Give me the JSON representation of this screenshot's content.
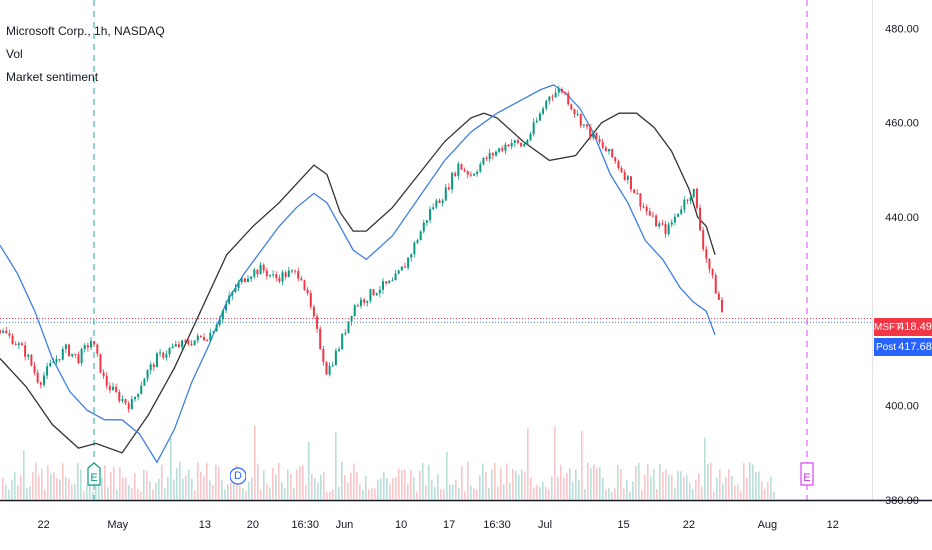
{
  "legend": {
    "title": "Microsoft Corp., 1h, NASDAQ",
    "vol": "Vol",
    "sentiment": "Market sentiment"
  },
  "price_labels": {
    "last": {
      "symbol": "MSFT",
      "value": "418.49",
      "color": "#f23645"
    },
    "post": {
      "symbol": "Post",
      "value": "417.68",
      "color": "#2962ff"
    }
  },
  "events": {
    "earnings_left": "E",
    "dividend": "D",
    "earnings_right": "E"
  },
  "colors": {
    "up": "#089981",
    "down": "#f23645",
    "blue_band": "#3f7fe0",
    "black_band": "#333333",
    "grid_dash_green": "#26a69a",
    "grid_dash_pink": "#e040fb"
  },
  "chart_data": {
    "type": "line",
    "title": "Microsoft Corp., 1h, NASDAQ",
    "y_ticks": [
      "480.00",
      "460.00",
      "440.00",
      "400.00",
      "380.00"
    ],
    "ylim": [
      380,
      486
    ],
    "x_ticks": [
      "22",
      "May",
      "13",
      "20",
      "16:30",
      "Jun",
      "10",
      "17",
      "16:30",
      "Jul",
      "15",
      "22",
      "Aug",
      "12"
    ],
    "xlim": [
      0,
      100
    ],
    "x_tick_positions": [
      5,
      13.5,
      23.5,
      29,
      35,
      39.5,
      46,
      51.5,
      57,
      62.5,
      71.5,
      79,
      88,
      95.5
    ],
    "series": [
      {
        "name": "Price",
        "x": [
          0,
          1.5,
          3,
          4.5,
          6,
          7.5,
          9,
          10.5,
          12,
          13.5,
          15,
          16.5,
          18,
          19.5,
          21,
          22.5,
          24,
          25.5,
          27,
          28.5,
          30,
          31.5,
          33,
          34.5,
          36,
          37.5,
          39,
          40.5,
          42,
          43.5,
          45,
          46.5,
          48,
          49.5,
          51,
          52.5,
          54,
          55.5,
          57,
          58.5,
          60,
          61.5,
          63,
          64.5,
          66,
          67.5,
          69,
          70.5,
          72,
          73.5,
          75,
          76.5,
          78,
          79.5,
          80.5,
          81.5,
          82.5,
          83
        ],
        "y": [
          416,
          414,
          411,
          405,
          409,
          412,
          410,
          414,
          405,
          402,
          400,
          406,
          410,
          412,
          413,
          414,
          415,
          420,
          425,
          428,
          429,
          427,
          428,
          428,
          418,
          407,
          413,
          421,
          423,
          425,
          426,
          430,
          436,
          442,
          445,
          451,
          449,
          452,
          454,
          456,
          455,
          460,
          466,
          467,
          462,
          458,
          455,
          452,
          448,
          443,
          439,
          437,
          442,
          446,
          435,
          428,
          422,
          418.49
        ]
      },
      {
        "name": "Upper band",
        "x": [
          0,
          3,
          6,
          9,
          11,
          14,
          17,
          20,
          23,
          26,
          29,
          32,
          34,
          36,
          37.5,
          39,
          40.5,
          42,
          45,
          48,
          51,
          54,
          55.5,
          57,
          60,
          63,
          66,
          69,
          71,
          73,
          75,
          77,
          79,
          80,
          81,
          82
        ],
        "y": [
          410,
          404,
          396,
          391,
          392,
          390,
          398,
          408,
          420,
          432,
          438,
          443,
          447,
          451,
          449,
          441,
          437,
          437,
          442,
          449,
          456,
          461,
          462,
          461,
          456,
          452,
          453,
          460,
          462,
          462,
          459,
          454,
          446,
          440,
          438,
          432
        ]
      },
      {
        "name": "Lower band",
        "x": [
          0,
          2,
          4,
          6,
          8,
          10,
          12,
          14,
          16,
          18,
          20,
          22,
          24,
          26,
          28,
          30,
          32,
          34,
          36,
          37.5,
          39,
          40.5,
          42,
          45,
          48,
          51,
          54,
          57,
          60,
          62,
          63.5,
          65,
          66.5,
          68,
          70,
          72,
          74,
          76,
          78,
          79.5,
          81,
          82
        ],
        "y": [
          434,
          428,
          420,
          410,
          403,
          399,
          397,
          397,
          394,
          388,
          395,
          405,
          413,
          422,
          428,
          433,
          438,
          442,
          445,
          443,
          438,
          433,
          431,
          436,
          444,
          452,
          458,
          462,
          465,
          467,
          468,
          466,
          463,
          458,
          449,
          443,
          435,
          431,
          425,
          422,
          420,
          415
        ]
      }
    ]
  }
}
